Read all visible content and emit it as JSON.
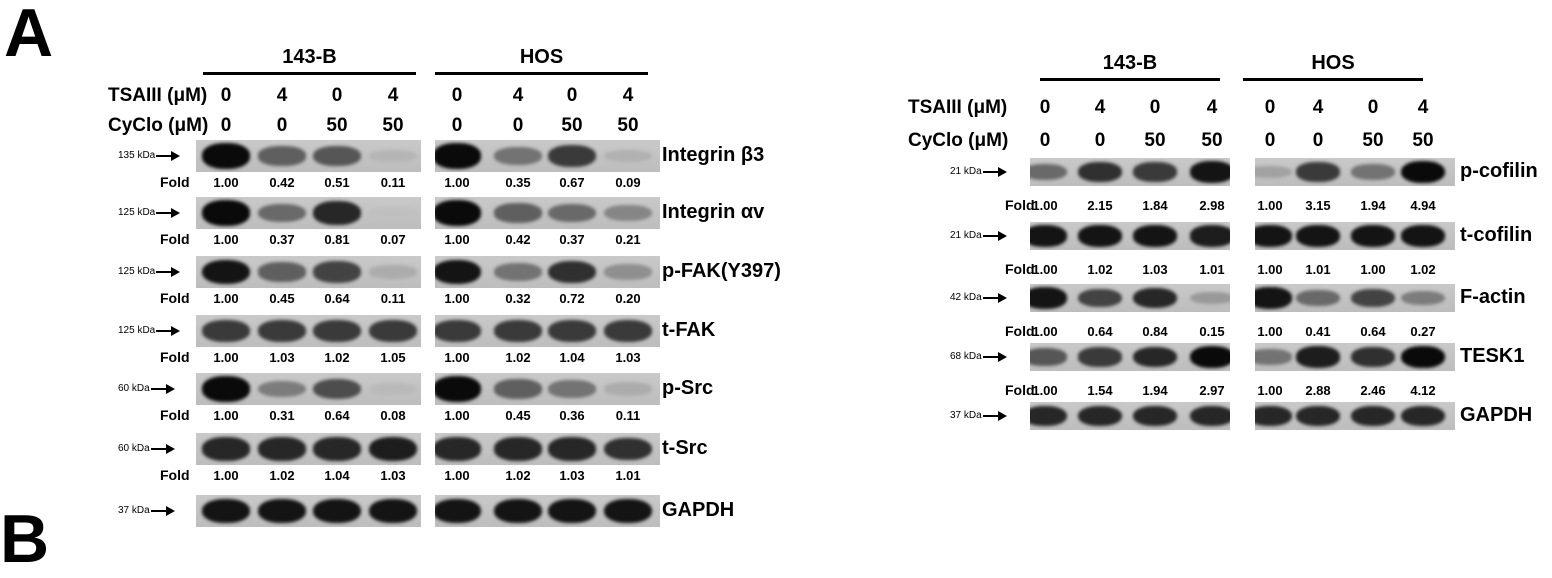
{
  "panel_label": "A",
  "panel_label_next": "B",
  "left": {
    "groups": [
      "143-B",
      "HOS"
    ],
    "treatments": [
      {
        "label": "TSAIII (μM)",
        "values": [
          "0",
          "4",
          "0",
          "4",
          "0",
          "4",
          "0",
          "4"
        ]
      },
      {
        "label": "CyClo (μM)",
        "values": [
          "0",
          "0",
          "50",
          "50",
          "0",
          "0",
          "50",
          "50"
        ]
      }
    ],
    "fold_label": "Fold",
    "rows": [
      {
        "kda": "135 kDa",
        "protein": "Integrin β3",
        "fold": [
          "1.00",
          "0.42",
          "0.51",
          "0.11",
          "1.00",
          "0.35",
          "0.67",
          "0.09"
        ],
        "intensity": [
          1.0,
          0.55,
          0.6,
          0.1,
          1.0,
          0.45,
          0.75,
          0.12
        ]
      },
      {
        "kda": "125 kDa",
        "protein": "Integrin αv",
        "fold": [
          "1.00",
          "0.37",
          "0.81",
          "0.07",
          "1.00",
          "0.42",
          "0.37",
          "0.21"
        ],
        "intensity": [
          1.0,
          0.5,
          0.85,
          0.05,
          1.0,
          0.55,
          0.5,
          0.35
        ]
      },
      {
        "kda": "125 kDa",
        "protein": "p-FAK(Y397)",
        "fold": [
          "1.00",
          "0.45",
          "0.64",
          "0.11",
          "1.00",
          "0.32",
          "0.72",
          "0.20"
        ],
        "intensity": [
          0.95,
          0.55,
          0.7,
          0.15,
          0.95,
          0.45,
          0.8,
          0.3
        ]
      },
      {
        "kda": "125 kDa",
        "protein": "t-FAK",
        "fold": [
          "1.00",
          "1.03",
          "1.02",
          "1.05",
          "1.00",
          "1.02",
          "1.04",
          "1.03"
        ],
        "intensity": [
          0.75,
          0.75,
          0.75,
          0.75,
          0.75,
          0.75,
          0.75,
          0.75
        ]
      },
      {
        "kda": "60 kDa",
        "protein": "p-Src",
        "fold": [
          "1.00",
          "0.31",
          "0.64",
          "0.08",
          "1.00",
          "0.45",
          "0.36",
          "0.11"
        ],
        "intensity": [
          1.0,
          0.4,
          0.65,
          0.08,
          1.0,
          0.55,
          0.45,
          0.15
        ]
      },
      {
        "kda": "60 kDa",
        "protein": "t-Src",
        "fold": [
          "1.00",
          "1.02",
          "1.04",
          "1.03",
          "1.00",
          "1.02",
          "1.03",
          "1.01"
        ],
        "intensity": [
          0.85,
          0.85,
          0.85,
          0.9,
          0.85,
          0.85,
          0.85,
          0.8
        ]
      },
      {
        "kda": "37 kDa",
        "protein": "GAPDH",
        "fold": null,
        "intensity": [
          0.95,
          0.95,
          0.95,
          0.95,
          0.95,
          0.95,
          0.95,
          0.95
        ]
      }
    ]
  },
  "right": {
    "groups": [
      "143-B",
      "HOS"
    ],
    "treatments": [
      {
        "label": "TSAIII (μM)",
        "values": [
          "0",
          "4",
          "0",
          "4",
          "0",
          "4",
          "0",
          "4"
        ]
      },
      {
        "label": "CyClo (μM)",
        "values": [
          "0",
          "0",
          "50",
          "50",
          "0",
          "0",
          "50",
          "50"
        ]
      }
    ],
    "fold_label": "Fold",
    "rows": [
      {
        "kda": "21 kDa",
        "protein": "p-cofilin",
        "fold": [
          "1.00",
          "2.15",
          "1.84",
          "2.98",
          "1.00",
          "3.15",
          "1.94",
          "4.94"
        ],
        "intensity": [
          0.5,
          0.8,
          0.75,
          0.95,
          0.2,
          0.75,
          0.45,
          1.0
        ]
      },
      {
        "kda": "21 kDa",
        "protein": "t-cofilin",
        "fold": [
          "1.00",
          "1.02",
          "1.03",
          "1.01",
          "1.00",
          "1.01",
          "1.00",
          "1.02"
        ],
        "intensity": [
          0.95,
          0.95,
          0.95,
          0.9,
          0.95,
          0.95,
          0.95,
          0.95
        ]
      },
      {
        "kda": "42 kDa",
        "protein": "F-actin",
        "fold": [
          "1.00",
          "0.64",
          "0.84",
          "0.15",
          "1.00",
          "0.41",
          "0.64",
          "0.27"
        ],
        "intensity": [
          0.95,
          0.7,
          0.85,
          0.25,
          0.95,
          0.5,
          0.7,
          0.4
        ]
      },
      {
        "kda": "68 kDa",
        "protein": "TESK1",
        "fold": [
          "1.00",
          "1.54",
          "1.94",
          "2.97",
          "1.00",
          "2.88",
          "2.46",
          "4.12"
        ],
        "intensity": [
          0.6,
          0.75,
          0.85,
          1.0,
          0.45,
          0.9,
          0.8,
          1.0
        ]
      },
      {
        "kda": "37 kDa",
        "protein": "GAPDH",
        "fold": null,
        "intensity": [
          0.85,
          0.85,
          0.85,
          0.85,
          0.85,
          0.85,
          0.85,
          0.85
        ]
      }
    ]
  }
}
